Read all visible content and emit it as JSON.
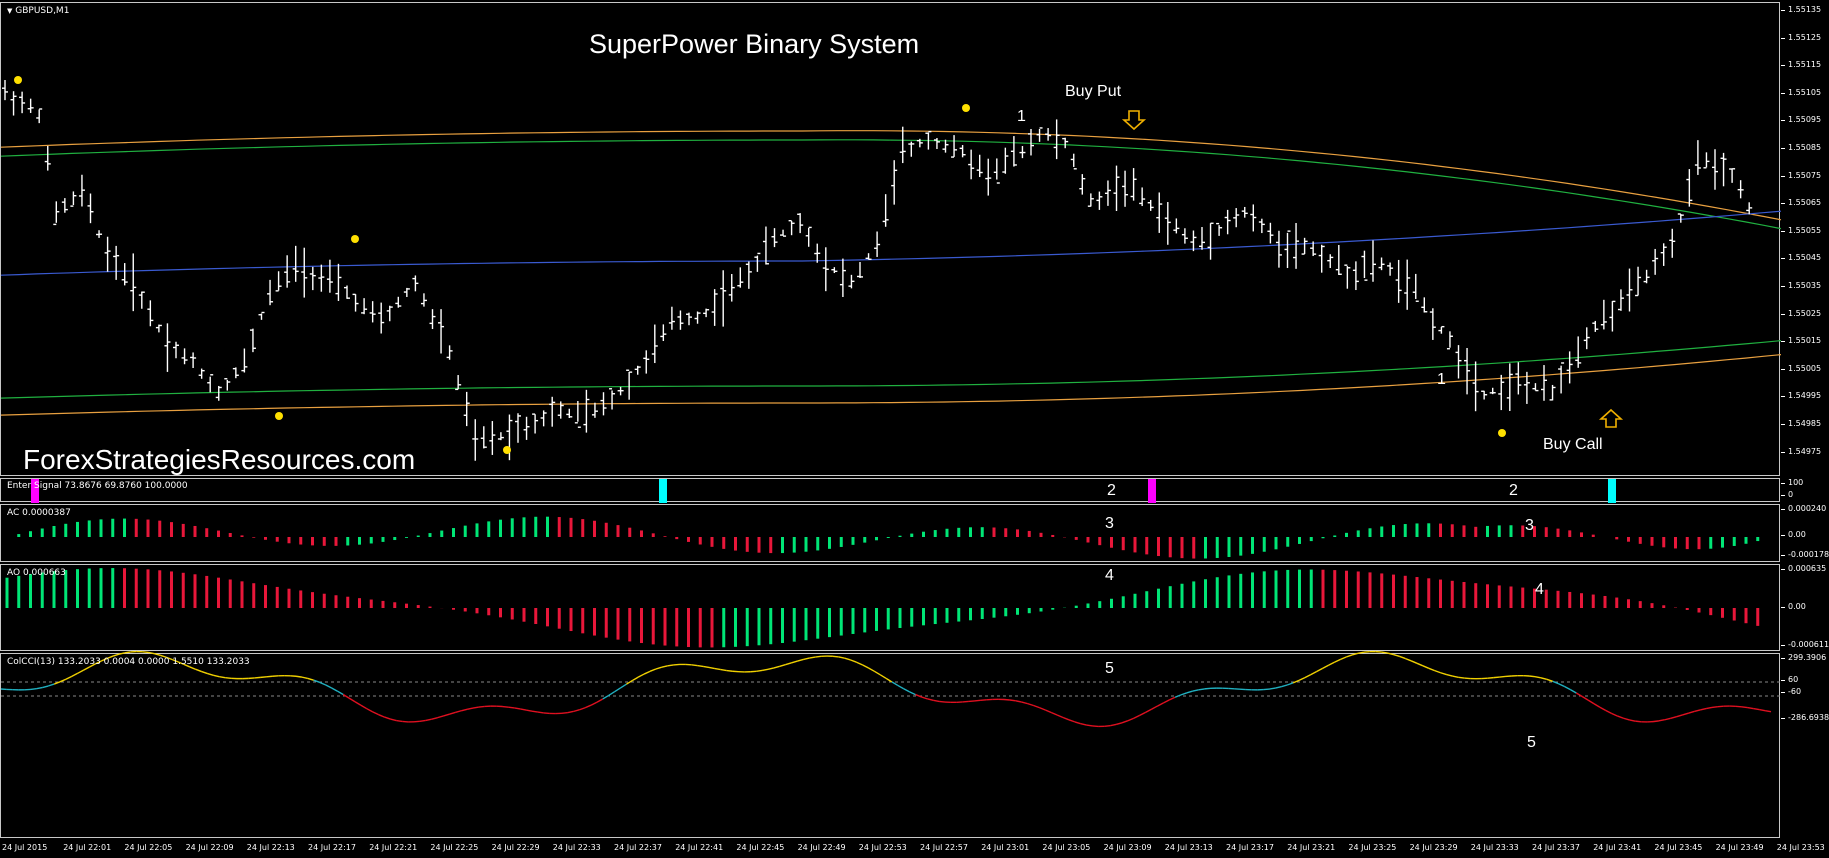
{
  "window": {
    "symbol_label": "GBPUSD,M1"
  },
  "main": {
    "title": "SuperPower Binary System",
    "watermark": "ForexStrategiesResources.com",
    "buy_put": "Buy Put",
    "buy_call": "Buy Call",
    "mark_1a": "1",
    "mark_1b": "1",
    "price_axis": [
      "1.55135",
      "1.55125",
      "1.55115",
      "1.55105",
      "1.55095",
      "1.55085",
      "1.55075",
      "1.55065",
      "1.55055",
      "1.55045",
      "1.55035",
      "1.55025",
      "1.55015",
      "1.55005",
      "1.54995",
      "1.54985",
      "1.54975"
    ]
  },
  "signal": {
    "label": "Enter Signal 73.8676 69.8760 100.0000",
    "mark_2a": "2",
    "mark_2b": "2",
    "axis": [
      "100",
      "0"
    ]
  },
  "ac": {
    "label": "AC 0.0000387",
    "mark_3a": "3",
    "mark_3b": "3",
    "axis": [
      "0.000240",
      "0.00",
      "-0.000178"
    ]
  },
  "ao": {
    "label": "AO 0.000663",
    "mark_4a": "4",
    "mark_4b": "4",
    "axis": [
      "0.000635",
      "0.00",
      "-0.000611"
    ]
  },
  "cci": {
    "label": "ColCCI(13) 133.2033 0.0004 0.0000 1.5510 133.2033",
    "mark_5a": "5",
    "mark_5b": "5",
    "axis": [
      "299.3906",
      "60",
      "-60",
      "-286.6938"
    ]
  },
  "time_axis": [
    "24 Jul 2015",
    "24 Jul 22:01",
    "24 Jul 22:05",
    "24 Jul 22:09",
    "24 Jul 22:13",
    "24 Jul 22:17",
    "24 Jul 22:21",
    "24 Jul 22:25",
    "24 Jul 22:29",
    "24 Jul 22:33",
    "24 Jul 22:37",
    "24 Jul 22:41",
    "24 Jul 22:45",
    "24 Jul 22:49",
    "24 Jul 22:53",
    "24 Jul 22:57",
    "24 Jul 23:01",
    "24 Jul 23:05",
    "24 Jul 23:09",
    "24 Jul 23:13",
    "24 Jul 23:17",
    "24 Jul 23:21",
    "24 Jul 23:25",
    "24 Jul 23:29",
    "24 Jul 23:33",
    "24 Jul 23:37",
    "24 Jul 23:41",
    "24 Jul 23:45",
    "24 Jul 23:49",
    "24 Jul 23:53"
  ],
  "colors": {
    "bull": "#00e676",
    "bear": "#e8173a",
    "signal_buy": "#00ffff",
    "signal_sell": "#ff00ff",
    "band_orange": "#e8a040",
    "band_green": "#20b040",
    "mid_blue": "#3a5ad0",
    "dot": "#ffe000",
    "cci_up": "#f0d000",
    "cci_mid": "#20b0c0",
    "cci_down": "#e01020"
  }
}
